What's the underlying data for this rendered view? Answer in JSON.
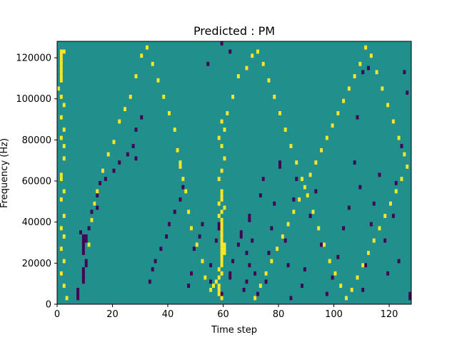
{
  "chart_data": {
    "type": "heatmap",
    "title": "Predicted : PM",
    "xlabel": "Time step",
    "ylabel": "Frequency (Hz)",
    "xlim": [
      0,
      128
    ],
    "ylim": [
      0,
      128000
    ],
    "x_ticks": [
      0,
      20,
      40,
      60,
      80,
      100,
      120
    ],
    "y_ticks": [
      0,
      20000,
      40000,
      60000,
      80000,
      100000,
      120000
    ],
    "x_tick_labels": [
      "0",
      "20",
      "40",
      "60",
      "80",
      "100",
      "120"
    ],
    "y_tick_labels": [
      "0",
      "20000",
      "40000",
      "60000",
      "80000",
      "100000",
      "120000"
    ],
    "rows": 64,
    "row_height_hz": 2000,
    "grid": false,
    "colormap": "viridis",
    "colors": {
      "background": "#21908d",
      "low": "#440154",
      "high": "#fde725"
    },
    "low_cells": [
      [
        7,
        1
      ],
      [
        7,
        2
      ],
      [
        7,
        3
      ],
      [
        9,
        5
      ],
      [
        9,
        6
      ],
      [
        9,
        7
      ],
      [
        9,
        8
      ],
      [
        10,
        9
      ],
      [
        10,
        10
      ],
      [
        9,
        12
      ],
      [
        9,
        13
      ],
      [
        9,
        14
      ],
      [
        9,
        15
      ],
      [
        9,
        16
      ],
      [
        10,
        16
      ],
      [
        10,
        15
      ],
      [
        8,
        17
      ],
      [
        11,
        18
      ],
      [
        12,
        20
      ],
      [
        12,
        22
      ],
      [
        14,
        23
      ],
      [
        13,
        24
      ],
      [
        14,
        26
      ],
      [
        15,
        29
      ],
      [
        17,
        30
      ],
      [
        20,
        32
      ],
      [
        22,
        34
      ],
      [
        25,
        36
      ],
      [
        27,
        38
      ],
      [
        28,
        35
      ],
      [
        28,
        42
      ],
      [
        30,
        45
      ],
      [
        33,
        5
      ],
      [
        34,
        8
      ],
      [
        35,
        10
      ],
      [
        37,
        13
      ],
      [
        39,
        16
      ],
      [
        40,
        19
      ],
      [
        42,
        22
      ],
      [
        44,
        25
      ],
      [
        45,
        28
      ],
      [
        47,
        4
      ],
      [
        48,
        7
      ],
      [
        49,
        13
      ],
      [
        51,
        16
      ],
      [
        52,
        19
      ],
      [
        55,
        5
      ],
      [
        55,
        9
      ],
      [
        57,
        15
      ],
      [
        58,
        18
      ],
      [
        58,
        19
      ],
      [
        59,
        1
      ],
      [
        59,
        2
      ],
      [
        62,
        6
      ],
      [
        62,
        7
      ],
      [
        63,
        10
      ],
      [
        65,
        14
      ],
      [
        66,
        16
      ],
      [
        66,
        17
      ],
      [
        67,
        3
      ],
      [
        68,
        5
      ],
      [
        68,
        12
      ],
      [
        69,
        9
      ],
      [
        69,
        20
      ],
      [
        69,
        21
      ],
      [
        70,
        15
      ],
      [
        71,
        7
      ],
      [
        72,
        2
      ],
      [
        73,
        26
      ],
      [
        74,
        30
      ],
      [
        75,
        5
      ],
      [
        76,
        12
      ],
      [
        77,
        18
      ],
      [
        78,
        24
      ],
      [
        80,
        33
      ],
      [
        80,
        34
      ],
      [
        82,
        15
      ],
      [
        83,
        9
      ],
      [
        84,
        1
      ],
      [
        85,
        25
      ],
      [
        86,
        30
      ],
      [
        88,
        4
      ],
      [
        89,
        8
      ],
      [
        91,
        21
      ],
      [
        93,
        27
      ],
      [
        95,
        14
      ],
      [
        97,
        2
      ],
      [
        99,
        6
      ],
      [
        101,
        11
      ],
      [
        103,
        18
      ],
      [
        105,
        23
      ],
      [
        107,
        34
      ],
      [
        108,
        45
      ],
      [
        109,
        28
      ],
      [
        110,
        3
      ],
      [
        111,
        9
      ],
      [
        112,
        12
      ],
      [
        113,
        19
      ],
      [
        114,
        24
      ],
      [
        116,
        31
      ],
      [
        118,
        15
      ],
      [
        119,
        7
      ],
      [
        121,
        21
      ],
      [
        122,
        29
      ],
      [
        123,
        10
      ],
      [
        124,
        38
      ],
      [
        125,
        56
      ],
      [
        126,
        51
      ],
      [
        127,
        1
      ],
      [
        127,
        2
      ],
      [
        54,
        58
      ],
      [
        62,
        61
      ],
      [
        59,
        63
      ],
      [
        112,
        57
      ],
      [
        110,
        56
      ]
    ],
    "high_cells": [
      [
        1,
        61
      ],
      [
        2,
        61
      ],
      [
        1,
        60
      ],
      [
        1,
        59
      ],
      [
        1,
        58
      ],
      [
        1,
        57
      ],
      [
        1,
        56
      ],
      [
        1,
        55
      ],
      [
        1,
        54
      ],
      [
        0,
        52
      ],
      [
        1,
        50
      ],
      [
        2,
        48
      ],
      [
        1,
        45
      ],
      [
        2,
        42
      ],
      [
        1,
        40
      ],
      [
        2,
        38
      ],
      [
        2,
        35
      ],
      [
        1,
        31
      ],
      [
        1,
        30
      ],
      [
        2,
        27
      ],
      [
        1,
        25
      ],
      [
        2,
        21
      ],
      [
        1,
        18
      ],
      [
        2,
        16
      ],
      [
        1,
        13
      ],
      [
        2,
        10
      ],
      [
        1,
        7
      ],
      [
        2,
        4
      ],
      [
        3,
        1
      ],
      [
        11,
        14
      ],
      [
        12,
        20
      ],
      [
        13,
        24
      ],
      [
        14,
        27
      ],
      [
        16,
        32
      ],
      [
        18,
        36
      ],
      [
        20,
        39
      ],
      [
        22,
        44
      ],
      [
        24,
        47
      ],
      [
        26,
        50
      ],
      [
        28,
        55
      ],
      [
        30,
        60
      ],
      [
        32,
        62
      ],
      [
        34,
        58
      ],
      [
        36,
        54
      ],
      [
        38,
        50
      ],
      [
        40,
        46
      ],
      [
        42,
        42
      ],
      [
        43,
        37
      ],
      [
        44,
        33
      ],
      [
        44,
        34
      ],
      [
        45,
        30
      ],
      [
        46,
        27
      ],
      [
        47,
        22
      ],
      [
        48,
        18
      ],
      [
        50,
        14
      ],
      [
        52,
        10
      ],
      [
        53,
        6
      ],
      [
        55,
        3
      ],
      [
        56,
        4
      ],
      [
        57,
        5
      ],
      [
        58,
        2
      ],
      [
        58,
        3
      ],
      [
        58,
        4
      ],
      [
        59,
        1
      ],
      [
        58,
        6
      ],
      [
        59,
        7
      ],
      [
        58,
        8
      ],
      [
        59,
        9
      ],
      [
        59,
        10
      ],
      [
        59,
        11
      ],
      [
        59,
        12
      ],
      [
        59,
        13
      ],
      [
        59,
        14
      ],
      [
        59,
        15
      ],
      [
        60,
        13
      ],
      [
        60,
        14
      ],
      [
        60,
        12
      ],
      [
        59,
        16
      ],
      [
        59,
        17
      ],
      [
        59,
        18
      ],
      [
        59,
        19
      ],
      [
        59,
        20
      ],
      [
        58,
        21
      ],
      [
        59,
        22
      ],
      [
        60,
        23
      ],
      [
        58,
        24
      ],
      [
        59,
        25
      ],
      [
        59,
        26
      ],
      [
        59,
        27
      ],
      [
        58,
        30
      ],
      [
        59,
        32
      ],
      [
        60,
        35
      ],
      [
        59,
        38
      ],
      [
        58,
        40
      ],
      [
        60,
        42
      ],
      [
        59,
        44
      ],
      [
        61,
        46
      ],
      [
        63,
        50
      ],
      [
        65,
        55
      ],
      [
        68,
        57
      ],
      [
        70,
        60
      ],
      [
        72,
        61
      ],
      [
        74,
        58
      ],
      [
        76,
        54
      ],
      [
        78,
        50
      ],
      [
        80,
        46
      ],
      [
        82,
        42
      ],
      [
        84,
        38
      ],
      [
        86,
        34
      ],
      [
        88,
        30
      ],
      [
        90,
        26
      ],
      [
        92,
        22
      ],
      [
        94,
        18
      ],
      [
        96,
        14
      ],
      [
        98,
        10
      ],
      [
        100,
        7
      ],
      [
        102,
        4
      ],
      [
        104,
        1
      ],
      [
        106,
        3
      ],
      [
        108,
        6
      ],
      [
        110,
        9
      ],
      [
        112,
        12
      ],
      [
        114,
        15
      ],
      [
        116,
        18
      ],
      [
        118,
        21
      ],
      [
        120,
        24
      ],
      [
        122,
        27
      ],
      [
        124,
        30
      ],
      [
        126,
        33
      ],
      [
        125,
        36
      ],
      [
        123,
        40
      ],
      [
        121,
        44
      ],
      [
        119,
        48
      ],
      [
        117,
        52
      ],
      [
        115,
        56
      ],
      [
        113,
        60
      ],
      [
        111,
        62
      ],
      [
        109,
        58
      ],
      [
        107,
        55
      ],
      [
        105,
        52
      ],
      [
        103,
        49
      ],
      [
        101,
        46
      ],
      [
        99,
        43
      ],
      [
        97,
        40
      ],
      [
        95,
        37
      ],
      [
        93,
        34
      ],
      [
        91,
        31
      ],
      [
        89,
        28
      ],
      [
        87,
        25
      ],
      [
        85,
        22
      ],
      [
        83,
        19
      ],
      [
        81,
        16
      ],
      [
        79,
        13
      ],
      [
        77,
        10
      ],
      [
        75,
        7
      ],
      [
        73,
        4
      ],
      [
        71,
        1
      ]
    ]
  }
}
